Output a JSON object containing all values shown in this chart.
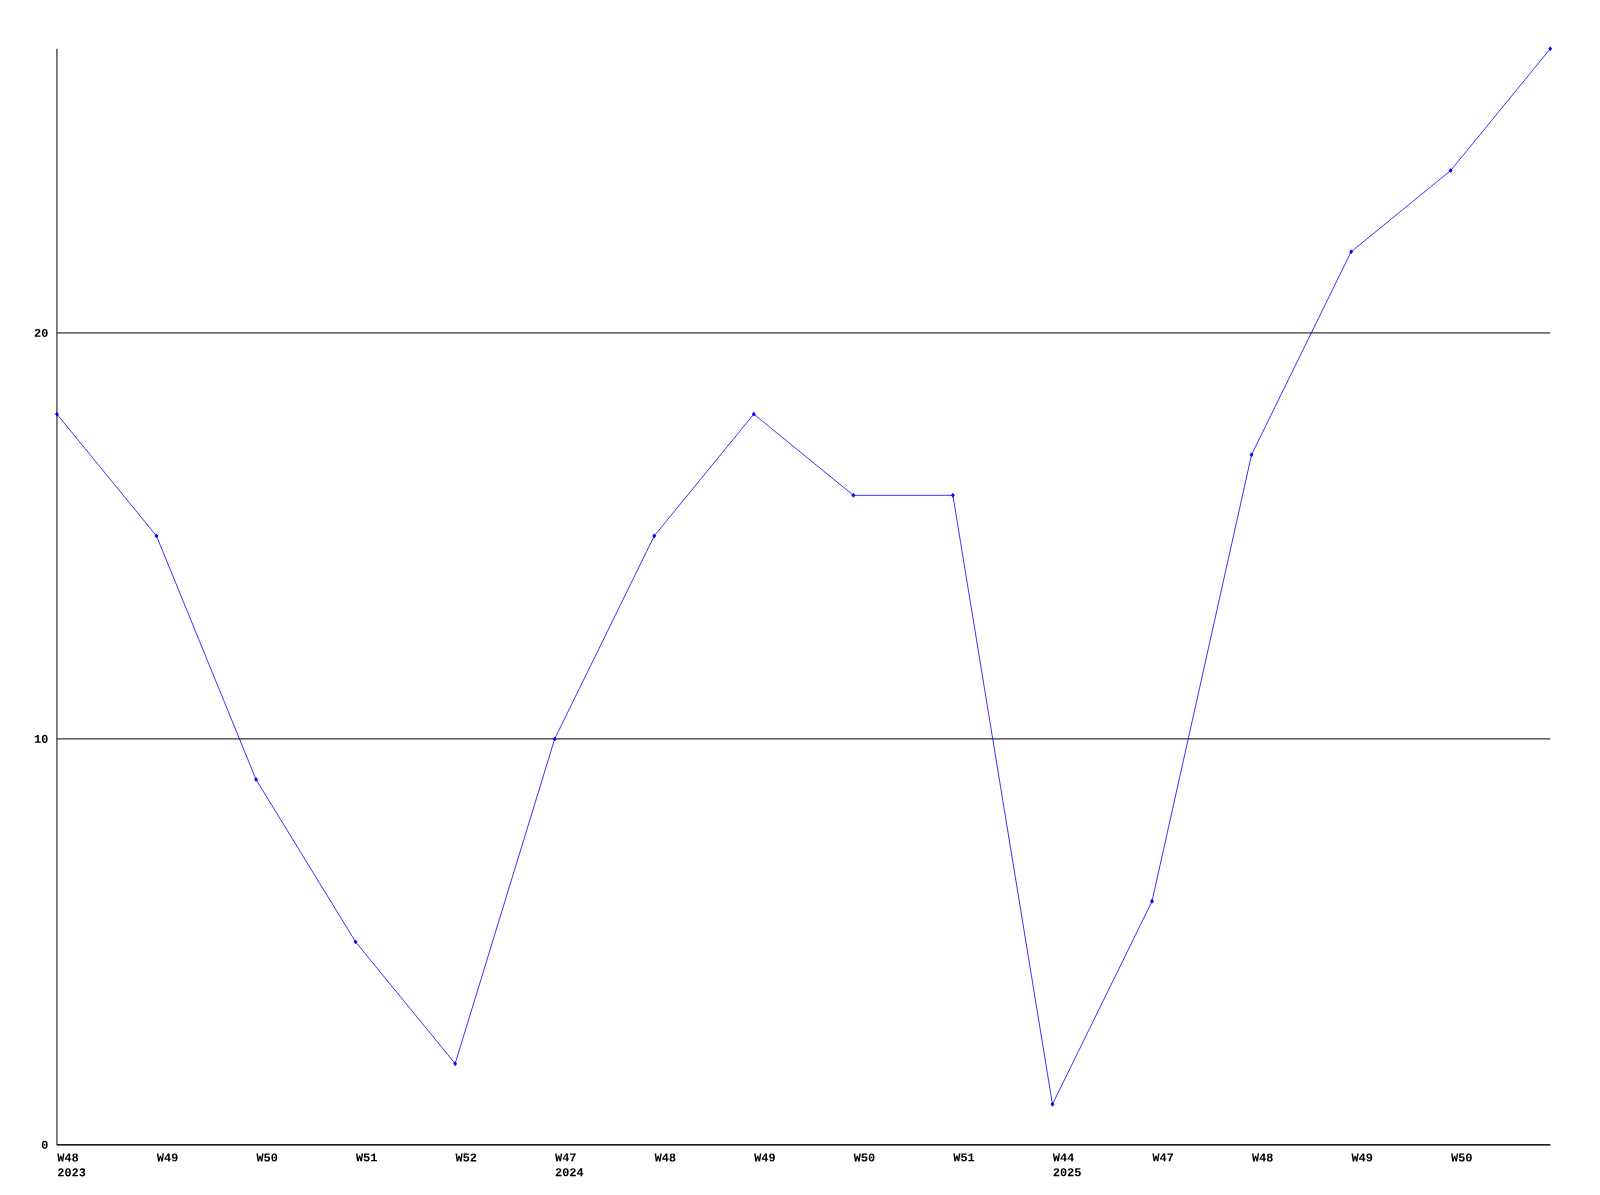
{
  "chart_data": {
    "type": "line",
    "categories": [
      "W48 2023",
      "W49",
      "W50",
      "W51",
      "W52",
      "W47 2024",
      "W48",
      "W49",
      "W50",
      "W51",
      "W44 2025",
      "W47",
      "W48",
      "W49",
      "W50",
      null
    ],
    "values": [
      18,
      15,
      9,
      5,
      2,
      10,
      15,
      18,
      16,
      16,
      1,
      6,
      17,
      22,
      24,
      27
    ],
    "color": "#0000ff",
    "marker": "diamond",
    "line_style": "solid",
    "grid": "y",
    "ylim": [
      0,
      27
    ],
    "yticks": [
      0,
      10,
      20
    ]
  }
}
